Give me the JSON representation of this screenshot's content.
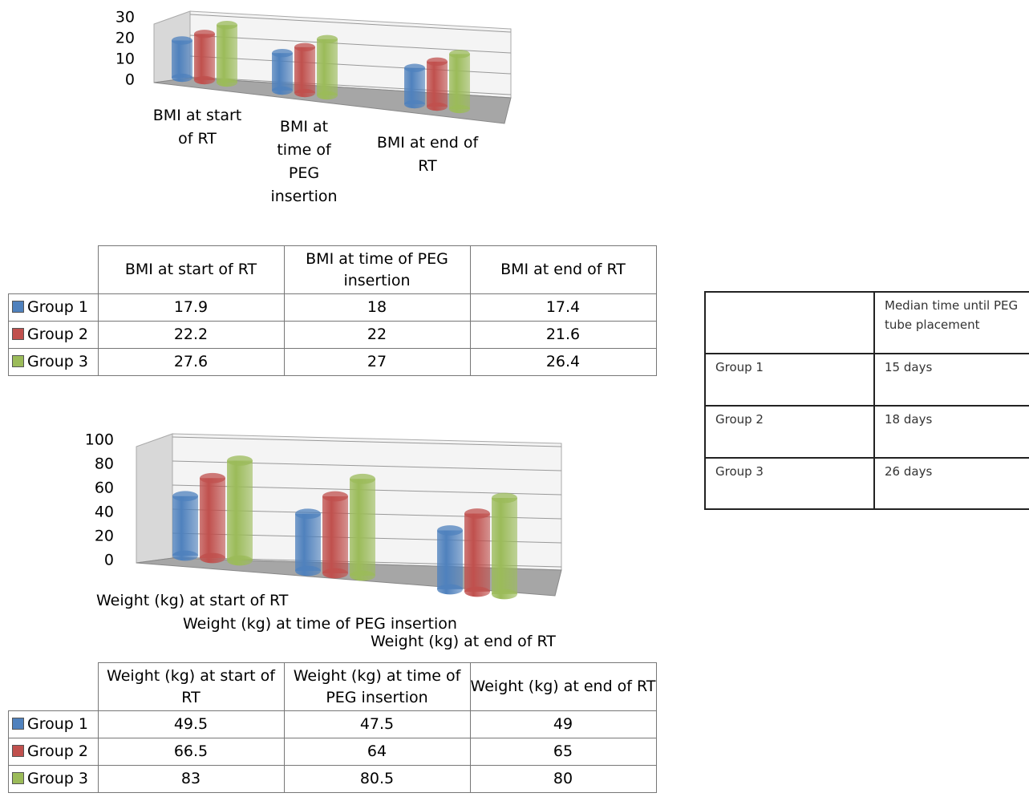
{
  "chart_data": [
    {
      "type": "bar",
      "categories": [
        "BMI at start of RT",
        "BMI at time of PEG insertion",
        "BMI at end of RT"
      ],
      "series": [
        {
          "name": "Group 1",
          "color": "#4f81bd",
          "values": [
            17.9,
            18,
            17.4
          ]
        },
        {
          "name": "Group 2",
          "color": "#c0504d",
          "values": [
            22.2,
            22,
            21.6
          ]
        },
        {
          "name": "Group 3",
          "color": "#9bbb59",
          "values": [
            27.6,
            27,
            26.4
          ]
        }
      ],
      "ylim": [
        0,
        30
      ],
      "yticks": [
        0,
        10,
        20,
        30
      ],
      "grid": true
    },
    {
      "type": "bar",
      "categories": [
        "Weight (kg) at start of RT",
        "Weight (kg) at time of PEG insertion",
        "Weight (kg) at end of RT"
      ],
      "series": [
        {
          "name": "Group 1",
          "color": "#4f81bd",
          "values": [
            49.5,
            47.5,
            49
          ]
        },
        {
          "name": "Group 2",
          "color": "#c0504d",
          "values": [
            66.5,
            64,
            65
          ]
        },
        {
          "name": "Group 3",
          "color": "#9bbb59",
          "values": [
            83,
            80.5,
            80
          ]
        }
      ],
      "ylim": [
        0,
        100
      ],
      "yticks": [
        0,
        20,
        40,
        60,
        80,
        100
      ],
      "grid": true
    }
  ],
  "table": {
    "header": "Median time until PEG tube placement",
    "rows": [
      [
        "Group 1",
        "15 days"
      ],
      [
        "Group 2",
        "18 days"
      ],
      [
        "Group 3",
        "26 days"
      ]
    ]
  }
}
